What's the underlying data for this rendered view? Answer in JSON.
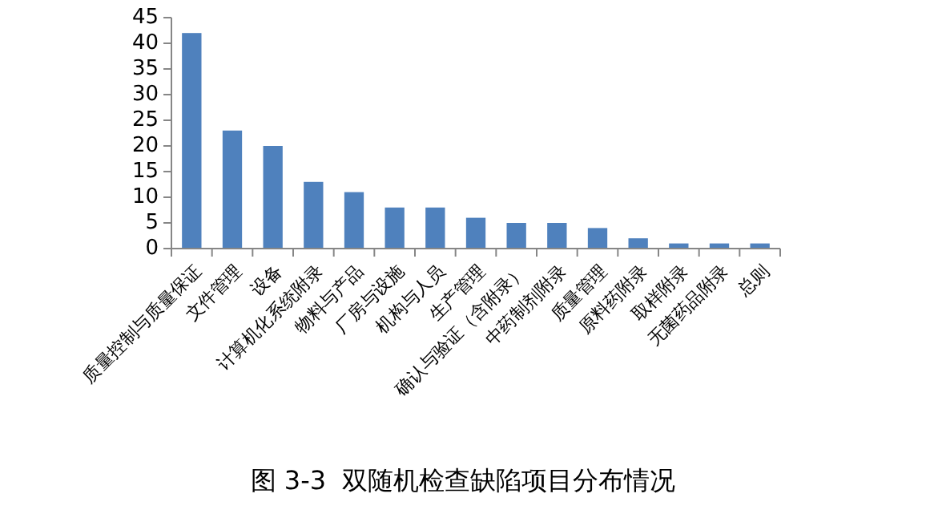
{
  "chart_data": {
    "type": "bar",
    "title": "图 3-3  双随机检查缺陷项目分布情况",
    "categories": [
      "质量控制与质量保证",
      "文件管理",
      "设备",
      "计算机化系统附录",
      "物料与产品",
      "厂房与设施",
      "机构与人员",
      "生产管理",
      "确认与验证（含附录）",
      "中药制剂附录",
      "质量管理",
      "原料药附录",
      "取样附录",
      "无菌药品附录",
      "总则"
    ],
    "values": [
      42,
      23,
      20,
      13,
      11,
      8,
      8,
      6,
      5,
      5,
      4,
      2,
      1,
      1,
      1
    ],
    "color": "#4f81bd",
    "ylim": [
      0,
      45
    ],
    "yticks": [
      0,
      5,
      10,
      15,
      20,
      25,
      30,
      35,
      40,
      45
    ],
    "grid": false
  }
}
